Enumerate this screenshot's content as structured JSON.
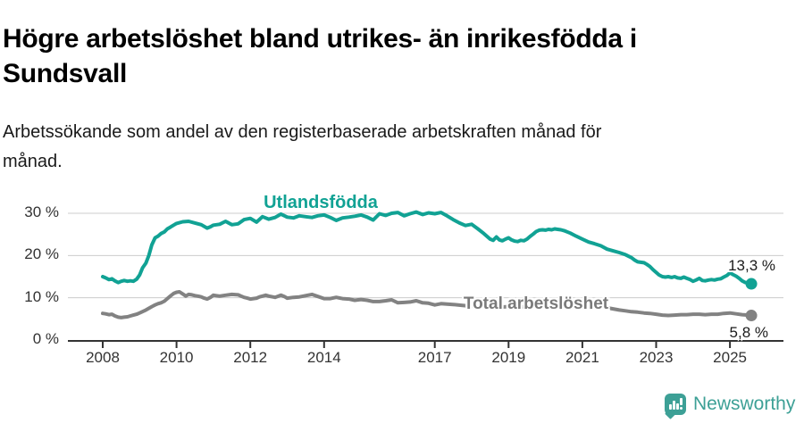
{
  "header": {
    "title": "Högre arbetslöshet bland utrikes- än inrikesfödda i Sundsvall",
    "title_lines": [
      "Högre arbetslöshet bland utrikes- än inrikesfödda i",
      "Sundsvall"
    ],
    "subtitle": "Arbetssökande som andel av den registerbaserade arbetskraften månad för månad.",
    "subtitle_lines": [
      "Arbetssökande som andel av den registerbaserade arbetskraften månad för",
      "månad."
    ]
  },
  "colors": {
    "accent_teal": "#11a294",
    "series_gray": "#828282",
    "grid": "#cccccc",
    "axis": "#333333",
    "text_dark": "#1a1a1a",
    "brand_teal": "#3da096"
  },
  "footer": {
    "brand": "Newsworthy"
  },
  "chart_data": {
    "type": "line",
    "title": "Högre arbetslöshet bland utrikes- än inrikesfödda i Sundsvall",
    "subtitle": "Arbetssökande som andel av den registerbaserade arbetskraften månad för månad.",
    "unit": "%",
    "grid": "horizontal",
    "legend_position": "inline-labels",
    "xlim": [
      2007.1,
      2026.4
    ],
    "ylim": [
      0,
      31
    ],
    "x_tick_labels": [
      "2008",
      "2010",
      "2012",
      "2014",
      "2017",
      "2019",
      "2021",
      "2023",
      "2025"
    ],
    "x_tick_years": [
      2008,
      2010,
      2012,
      2014,
      2017,
      2019,
      2021,
      2023,
      2025
    ],
    "y_ticks": [
      {
        "value": 0,
        "label": "0 %"
      },
      {
        "value": 10,
        "label": "10 %"
      },
      {
        "value": 20,
        "label": "20 %"
      },
      {
        "value": 30,
        "label": "30 %"
      }
    ],
    "series": [
      {
        "name": "Utlandsfödda",
        "color": "#11a294",
        "end_value": 13.3,
        "end_label": "13,3 %",
        "points": [
          [
            2008.0,
            15.0
          ],
          [
            2008.08,
            14.7
          ],
          [
            2008.17,
            14.3
          ],
          [
            2008.25,
            14.5
          ],
          [
            2008.33,
            14.0
          ],
          [
            2008.42,
            13.6
          ],
          [
            2008.5,
            13.9
          ],
          [
            2008.58,
            14.1
          ],
          [
            2008.67,
            13.9
          ],
          [
            2008.75,
            14.0
          ],
          [
            2008.83,
            13.9
          ],
          [
            2008.92,
            14.4
          ],
          [
            2009.0,
            15.4
          ],
          [
            2009.08,
            17.1
          ],
          [
            2009.17,
            18.2
          ],
          [
            2009.25,
            20.0
          ],
          [
            2009.33,
            22.5
          ],
          [
            2009.42,
            24.2
          ],
          [
            2009.5,
            24.6
          ],
          [
            2009.58,
            25.2
          ],
          [
            2009.67,
            25.6
          ],
          [
            2009.75,
            26.3
          ],
          [
            2009.83,
            26.7
          ],
          [
            2009.92,
            27.2
          ],
          [
            2010.0,
            27.6
          ],
          [
            2010.17,
            28.0
          ],
          [
            2010.33,
            28.1
          ],
          [
            2010.5,
            27.7
          ],
          [
            2010.67,
            27.3
          ],
          [
            2010.83,
            26.5
          ],
          [
            2010.92,
            26.8
          ],
          [
            2011.0,
            27.2
          ],
          [
            2011.17,
            27.4
          ],
          [
            2011.33,
            28.1
          ],
          [
            2011.5,
            27.3
          ],
          [
            2011.67,
            27.5
          ],
          [
            2011.83,
            28.5
          ],
          [
            2012.0,
            28.8
          ],
          [
            2012.17,
            27.9
          ],
          [
            2012.33,
            29.2
          ],
          [
            2012.5,
            28.6
          ],
          [
            2012.67,
            29.0
          ],
          [
            2012.83,
            29.8
          ],
          [
            2013.0,
            29.1
          ],
          [
            2013.17,
            28.9
          ],
          [
            2013.33,
            29.4
          ],
          [
            2013.5,
            29.2
          ],
          [
            2013.67,
            29.0
          ],
          [
            2013.83,
            29.4
          ],
          [
            2014.0,
            29.6
          ],
          [
            2014.17,
            29.0
          ],
          [
            2014.33,
            28.3
          ],
          [
            2014.5,
            28.9
          ],
          [
            2014.67,
            29.1
          ],
          [
            2014.83,
            29.3
          ],
          [
            2015.0,
            29.6
          ],
          [
            2015.17,
            29.1
          ],
          [
            2015.33,
            28.4
          ],
          [
            2015.5,
            29.9
          ],
          [
            2015.67,
            29.5
          ],
          [
            2015.83,
            30.0
          ],
          [
            2016.0,
            30.2
          ],
          [
            2016.17,
            29.4
          ],
          [
            2016.33,
            29.9
          ],
          [
            2016.5,
            30.3
          ],
          [
            2016.67,
            29.7
          ],
          [
            2016.83,
            30.1
          ],
          [
            2017.0,
            29.9
          ],
          [
            2017.17,
            30.2
          ],
          [
            2017.33,
            29.4
          ],
          [
            2017.5,
            28.5
          ],
          [
            2017.67,
            27.7
          ],
          [
            2017.83,
            27.1
          ],
          [
            2018.0,
            27.4
          ],
          [
            2018.17,
            26.3
          ],
          [
            2018.33,
            25.2
          ],
          [
            2018.5,
            23.9
          ],
          [
            2018.58,
            23.6
          ],
          [
            2018.67,
            24.4
          ],
          [
            2018.75,
            23.7
          ],
          [
            2018.83,
            23.5
          ],
          [
            2018.92,
            23.9
          ],
          [
            2019.0,
            24.2
          ],
          [
            2019.08,
            23.7
          ],
          [
            2019.17,
            23.4
          ],
          [
            2019.25,
            23.3
          ],
          [
            2019.33,
            23.6
          ],
          [
            2019.42,
            23.5
          ],
          [
            2019.5,
            23.9
          ],
          [
            2019.58,
            24.5
          ],
          [
            2019.67,
            25.1
          ],
          [
            2019.75,
            25.7
          ],
          [
            2019.83,
            26.0
          ],
          [
            2019.92,
            26.1
          ],
          [
            2020.0,
            26.0
          ],
          [
            2020.08,
            26.2
          ],
          [
            2020.17,
            26.1
          ],
          [
            2020.25,
            26.3
          ],
          [
            2020.33,
            26.2
          ],
          [
            2020.42,
            26.1
          ],
          [
            2020.5,
            25.9
          ],
          [
            2020.67,
            25.3
          ],
          [
            2020.83,
            24.6
          ],
          [
            2021.0,
            23.9
          ],
          [
            2021.17,
            23.2
          ],
          [
            2021.33,
            22.8
          ],
          [
            2021.5,
            22.3
          ],
          [
            2021.67,
            21.5
          ],
          [
            2021.83,
            21.1
          ],
          [
            2022.0,
            20.7
          ],
          [
            2022.17,
            20.2
          ],
          [
            2022.33,
            19.5
          ],
          [
            2022.42,
            18.9
          ],
          [
            2022.5,
            18.5
          ],
          [
            2022.58,
            18.4
          ],
          [
            2022.67,
            18.3
          ],
          [
            2022.75,
            17.9
          ],
          [
            2022.83,
            17.4
          ],
          [
            2022.92,
            16.6
          ],
          [
            2023.0,
            16.0
          ],
          [
            2023.08,
            15.4
          ],
          [
            2023.17,
            15.0
          ],
          [
            2023.25,
            14.9
          ],
          [
            2023.33,
            15.0
          ],
          [
            2023.42,
            14.8
          ],
          [
            2023.5,
            15.0
          ],
          [
            2023.58,
            14.7
          ],
          [
            2023.67,
            14.6
          ],
          [
            2023.75,
            14.9
          ],
          [
            2023.83,
            14.6
          ],
          [
            2023.92,
            14.3
          ],
          [
            2024.0,
            13.9
          ],
          [
            2024.08,
            14.2
          ],
          [
            2024.17,
            14.6
          ],
          [
            2024.25,
            14.1
          ],
          [
            2024.33,
            14.0
          ],
          [
            2024.42,
            14.2
          ],
          [
            2024.5,
            14.3
          ],
          [
            2024.58,
            14.2
          ],
          [
            2024.67,
            14.4
          ],
          [
            2024.75,
            14.5
          ],
          [
            2024.83,
            14.9
          ],
          [
            2024.92,
            15.3
          ],
          [
            2025.0,
            15.9
          ],
          [
            2025.08,
            15.5
          ],
          [
            2025.17,
            15.1
          ],
          [
            2025.25,
            14.6
          ],
          [
            2025.33,
            14.0
          ],
          [
            2025.42,
            13.6
          ],
          [
            2025.5,
            13.4
          ],
          [
            2025.58,
            13.3
          ]
        ]
      },
      {
        "name": "Total arbetslöshet",
        "color": "#828282",
        "end_value": 5.8,
        "end_label": "5,8 %",
        "points": [
          [
            2008.0,
            6.3
          ],
          [
            2008.08,
            6.2
          ],
          [
            2008.17,
            6.0
          ],
          [
            2008.25,
            6.1
          ],
          [
            2008.33,
            5.7
          ],
          [
            2008.42,
            5.4
          ],
          [
            2008.5,
            5.3
          ],
          [
            2008.58,
            5.4
          ],
          [
            2008.67,
            5.5
          ],
          [
            2008.75,
            5.7
          ],
          [
            2008.83,
            5.9
          ],
          [
            2008.92,
            6.1
          ],
          [
            2009.0,
            6.4
          ],
          [
            2009.17,
            7.1
          ],
          [
            2009.33,
            7.9
          ],
          [
            2009.42,
            8.3
          ],
          [
            2009.5,
            8.6
          ],
          [
            2009.58,
            8.8
          ],
          [
            2009.67,
            9.2
          ],
          [
            2009.75,
            9.8
          ],
          [
            2009.83,
            10.4
          ],
          [
            2009.92,
            11.0
          ],
          [
            2010.0,
            11.3
          ],
          [
            2010.08,
            11.4
          ],
          [
            2010.17,
            10.9
          ],
          [
            2010.25,
            10.4
          ],
          [
            2010.33,
            10.8
          ],
          [
            2010.42,
            10.7
          ],
          [
            2010.5,
            10.5
          ],
          [
            2010.58,
            10.4
          ],
          [
            2010.67,
            10.2
          ],
          [
            2010.75,
            9.9
          ],
          [
            2010.83,
            9.7
          ],
          [
            2010.92,
            10.1
          ],
          [
            2011.0,
            10.6
          ],
          [
            2011.08,
            10.5
          ],
          [
            2011.17,
            10.4
          ],
          [
            2011.25,
            10.5
          ],
          [
            2011.33,
            10.6
          ],
          [
            2011.5,
            10.8
          ],
          [
            2011.67,
            10.7
          ],
          [
            2011.75,
            10.4
          ],
          [
            2011.83,
            10.1
          ],
          [
            2011.92,
            9.9
          ],
          [
            2012.0,
            9.7
          ],
          [
            2012.17,
            9.9
          ],
          [
            2012.25,
            10.2
          ],
          [
            2012.42,
            10.6
          ],
          [
            2012.5,
            10.4
          ],
          [
            2012.67,
            10.1
          ],
          [
            2012.83,
            10.6
          ],
          [
            2012.92,
            10.3
          ],
          [
            2013.0,
            9.9
          ],
          [
            2013.17,
            10.1
          ],
          [
            2013.33,
            10.2
          ],
          [
            2013.5,
            10.5
          ],
          [
            2013.67,
            10.8
          ],
          [
            2013.83,
            10.3
          ],
          [
            2014.0,
            9.8
          ],
          [
            2014.17,
            9.8
          ],
          [
            2014.33,
            10.1
          ],
          [
            2014.5,
            9.8
          ],
          [
            2014.67,
            9.7
          ],
          [
            2014.83,
            9.4
          ],
          [
            2015.0,
            9.6
          ],
          [
            2015.17,
            9.4
          ],
          [
            2015.33,
            9.1
          ],
          [
            2015.5,
            9.1
          ],
          [
            2015.67,
            9.3
          ],
          [
            2015.83,
            9.5
          ],
          [
            2016.0,
            8.8
          ],
          [
            2016.17,
            8.9
          ],
          [
            2016.33,
            9.0
          ],
          [
            2016.5,
            9.3
          ],
          [
            2016.67,
            8.8
          ],
          [
            2016.83,
            8.7
          ],
          [
            2017.0,
            8.3
          ],
          [
            2017.17,
            8.6
          ],
          [
            2017.33,
            8.5
          ],
          [
            2017.5,
            8.4
          ],
          [
            2017.75,
            8.2
          ],
          [
            2018.0,
            8.0
          ],
          [
            2018.25,
            8.1
          ],
          [
            2018.5,
            7.9
          ],
          [
            2018.75,
            7.8
          ],
          [
            2019.0,
            7.9
          ],
          [
            2019.25,
            7.8
          ],
          [
            2019.5,
            7.9
          ],
          [
            2019.75,
            8.1
          ],
          [
            2020.0,
            8.3
          ],
          [
            2020.25,
            8.9
          ],
          [
            2020.42,
            9.2
          ],
          [
            2020.58,
            9.0
          ],
          [
            2020.83,
            8.8
          ],
          [
            2021.0,
            8.6
          ],
          [
            2021.25,
            8.3
          ],
          [
            2021.5,
            7.9
          ],
          [
            2021.75,
            7.5
          ],
          [
            2022.0,
            7.1
          ],
          [
            2022.17,
            6.9
          ],
          [
            2022.33,
            6.7
          ],
          [
            2022.5,
            6.6
          ],
          [
            2022.67,
            6.4
          ],
          [
            2022.83,
            6.3
          ],
          [
            2023.0,
            6.1
          ],
          [
            2023.17,
            5.9
          ],
          [
            2023.33,
            5.8
          ],
          [
            2023.5,
            5.9
          ],
          [
            2023.67,
            6.0
          ],
          [
            2023.83,
            6.0
          ],
          [
            2024.0,
            6.1
          ],
          [
            2024.17,
            6.1
          ],
          [
            2024.33,
            6.0
          ],
          [
            2024.5,
            6.1
          ],
          [
            2024.67,
            6.1
          ],
          [
            2024.83,
            6.3
          ],
          [
            2025.0,
            6.4
          ],
          [
            2025.17,
            6.2
          ],
          [
            2025.33,
            6.0
          ],
          [
            2025.5,
            5.9
          ],
          [
            2025.58,
            5.8
          ]
        ]
      }
    ]
  }
}
